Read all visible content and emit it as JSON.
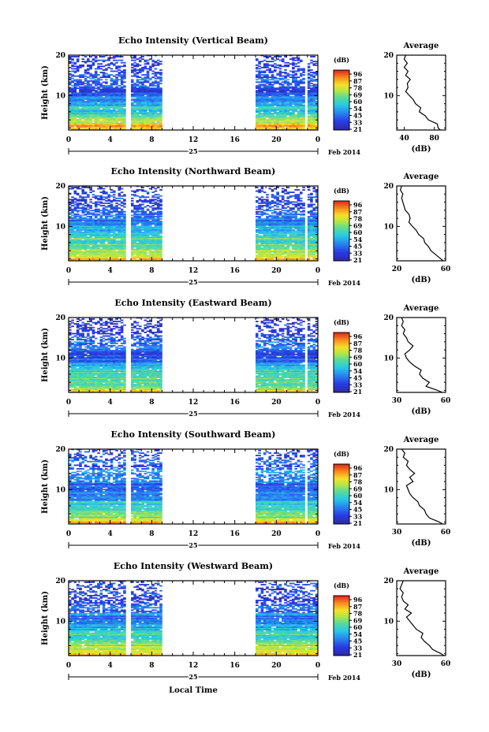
{
  "figure": {
    "date_label": "Feb 2014",
    "day_label": "25",
    "xlabel": "Local Time",
    "ylabel": "Height (km)",
    "cbar_unit": "(dB)",
    "avg_title": "Average",
    "avg_xlabel": "(dB)"
  },
  "chart_data": [
    {
      "type": "heatmap",
      "title": "Echo Intensity (Vertical Beam)",
      "x_ticks": [
        "0",
        "4",
        "8",
        "12",
        "16",
        "20",
        "0"
      ],
      "xlim": [
        0,
        24
      ],
      "y_ticks": [
        "10",
        "20"
      ],
      "ylim": [
        1.5,
        20
      ],
      "data_gaps_hours": [
        [
          5.5,
          6.0
        ],
        [
          9.0,
          18.0
        ],
        [
          22.8,
          23.0
        ]
      ],
      "colorbar_ticks": [
        "96",
        "87",
        "78",
        "69",
        "60",
        "54",
        "45",
        "33",
        "21"
      ],
      "colorbar_range": [
        21,
        96
      ],
      "average_profile": {
        "x_ticks": [
          "40",
          "80"
        ],
        "xlim": [
          30,
          95
        ],
        "height_km": [
          1.5,
          2,
          3,
          4,
          5,
          6,
          7,
          8,
          9,
          10,
          11,
          12,
          13,
          14,
          15,
          16,
          17,
          18,
          19,
          20
        ],
        "db": [
          88,
          85,
          84,
          72,
          68,
          60,
          62,
          55,
          52,
          47,
          42,
          45,
          44,
          48,
          42,
          45,
          40,
          44,
          40,
          42
        ]
      }
    },
    {
      "type": "heatmap",
      "title": "Echo Intensity (Northward Beam)",
      "x_ticks": [
        "0",
        "4",
        "8",
        "12",
        "16",
        "20",
        "0"
      ],
      "xlim": [
        0,
        24
      ],
      "y_ticks": [
        "10",
        "20"
      ],
      "ylim": [
        1.5,
        20
      ],
      "data_gaps_hours": [
        [
          5.5,
          6.0
        ],
        [
          9.0,
          18.0
        ],
        [
          22.8,
          23.0
        ]
      ],
      "colorbar_ticks": [
        "96",
        "87",
        "78",
        "69",
        "60",
        "54",
        "45",
        "33",
        "21"
      ],
      "colorbar_range": [
        21,
        96
      ],
      "average_profile": {
        "x_ticks": [
          "20",
          "60"
        ],
        "xlim": [
          20,
          60
        ],
        "height_km": [
          1.5,
          2,
          3,
          4,
          5,
          6,
          7,
          8,
          9,
          10,
          11,
          12,
          13,
          14,
          15,
          16,
          17,
          18,
          19,
          20
        ],
        "db": [
          58,
          56,
          52,
          48,
          46,
          43,
          42,
          38,
          36,
          33,
          30,
          31,
          30,
          27,
          26,
          25,
          24,
          25,
          23,
          24
        ]
      }
    },
    {
      "type": "heatmap",
      "title": "Echo Intensity (Eastward Beam)",
      "x_ticks": [
        "0",
        "4",
        "8",
        "12",
        "16",
        "20",
        "0"
      ],
      "xlim": [
        0,
        24
      ],
      "y_ticks": [
        "10",
        "20"
      ],
      "ylim": [
        1.5,
        20
      ],
      "data_gaps_hours": [
        [
          5.5,
          6.0
        ],
        [
          9.0,
          18.0
        ],
        [
          22.8,
          23.0
        ]
      ],
      "colorbar_ticks": [
        "96",
        "87",
        "78",
        "69",
        "60",
        "54",
        "45",
        "33",
        "21"
      ],
      "colorbar_range": [
        21,
        96
      ],
      "average_profile": {
        "x_ticks": [
          "30",
          "60"
        ],
        "xlim": [
          30,
          60
        ],
        "height_km": [
          1.5,
          2,
          3,
          4,
          5,
          6,
          7,
          8,
          9,
          10,
          11,
          12,
          13,
          14,
          15,
          16,
          17,
          18,
          19,
          20
        ],
        "db": [
          58,
          55,
          48,
          50,
          46,
          44,
          45,
          41,
          38,
          36,
          35,
          38,
          40,
          37,
          36,
          34,
          35,
          33,
          34,
          33
        ]
      }
    },
    {
      "type": "heatmap",
      "title": "Echo Intensity (Southward Beam)",
      "x_ticks": [
        "0",
        "4",
        "8",
        "12",
        "16",
        "20",
        "0"
      ],
      "xlim": [
        0,
        24
      ],
      "y_ticks": [
        "10",
        "20"
      ],
      "ylim": [
        1.5,
        20
      ],
      "data_gaps_hours": [
        [
          5.5,
          6.0
        ],
        [
          9.0,
          18.0
        ],
        [
          22.8,
          23.0
        ]
      ],
      "colorbar_ticks": [
        "96",
        "87",
        "78",
        "69",
        "60",
        "54",
        "45",
        "33",
        "21"
      ],
      "colorbar_range": [
        21,
        96
      ],
      "average_profile": {
        "x_ticks": [
          "30",
          "60"
        ],
        "xlim": [
          30,
          60
        ],
        "height_km": [
          1.5,
          2,
          3,
          4,
          5,
          6,
          7,
          8,
          9,
          10,
          11,
          12,
          13,
          14,
          15,
          16,
          17,
          18,
          19,
          20
        ],
        "db": [
          58,
          56,
          50,
          48,
          47,
          44,
          43,
          40,
          38,
          37,
          36,
          40,
          38,
          41,
          38,
          36,
          37,
          34,
          35,
          33
        ]
      }
    },
    {
      "type": "heatmap",
      "title": "Echo Intensity (Westward Beam)",
      "x_ticks": [
        "0",
        "4",
        "8",
        "12",
        "16",
        "20",
        "0"
      ],
      "xlim": [
        0,
        24
      ],
      "y_ticks": [
        "10",
        "20"
      ],
      "ylim": [
        1.5,
        20
      ],
      "data_gaps_hours": [
        [
          5.5,
          6.0
        ],
        [
          9.0,
          18.0
        ]
      ],
      "colorbar_ticks": [
        "96",
        "87",
        "78",
        "69",
        "60",
        "54",
        "45",
        "33",
        "21"
      ],
      "colorbar_range": [
        21,
        96
      ],
      "average_profile": {
        "x_ticks": [
          "30",
          "60"
        ],
        "xlim": [
          30,
          60
        ],
        "height_km": [
          1.5,
          2,
          3,
          4,
          5,
          6,
          7,
          8,
          9,
          10,
          11,
          12,
          13,
          14,
          15,
          16,
          17,
          18,
          19,
          20
        ],
        "db": [
          59,
          57,
          52,
          50,
          47,
          45,
          46,
          42,
          40,
          38,
          36,
          39,
          35,
          37,
          34,
          33,
          34,
          32,
          33,
          34
        ]
      }
    }
  ]
}
